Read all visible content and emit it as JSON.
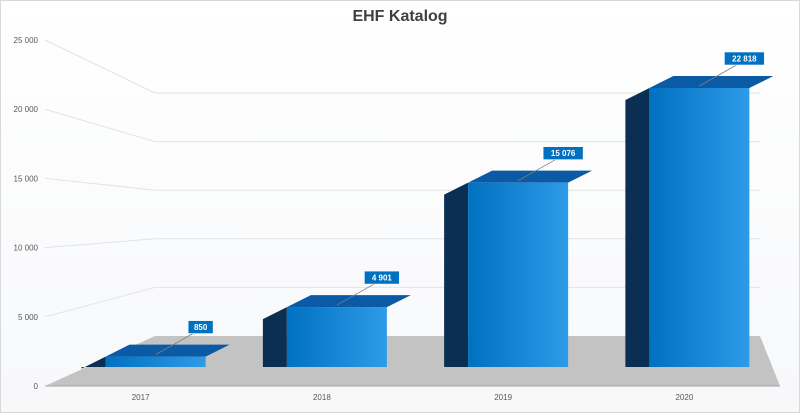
{
  "chart_data": {
    "type": "bar",
    "title": "EHF Katalog",
    "categories": [
      "2017",
      "2018",
      "2019",
      "2020"
    ],
    "values": [
      850,
      4901,
      15076,
      22818
    ],
    "data_labels": [
      "850",
      "4 901",
      "15 076",
      "22 818"
    ],
    "ylim": [
      0,
      25000
    ],
    "yticks": [
      0,
      5000,
      10000,
      15000,
      20000,
      25000
    ],
    "ytick_labels": [
      "0",
      "5 000",
      "10 000",
      "15 000",
      "20 000",
      "25 000"
    ],
    "xlabel": "",
    "ylabel": "",
    "grid": true,
    "legend": "none",
    "colors": {
      "bar_front": "#0070c0",
      "bar_front_light": "#2e9be8",
      "bar_top": "#0a5aa5",
      "bar_side": "#0b2f52",
      "floor": "#c3c3c3",
      "label_bg": "#0070c0"
    }
  }
}
